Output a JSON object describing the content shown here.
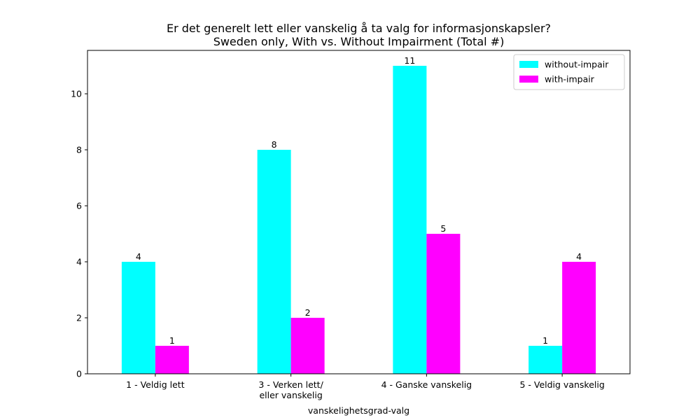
{
  "chart_data": {
    "type": "bar",
    "title": [
      "Er det generelt lett eller vanskelig å ta valg for informasjonskapsler?",
      "Sweden only, With vs. Without Impairment (Total #)"
    ],
    "xlabel": "vanskelighetsgrad-valg",
    "ylabel": "",
    "categories": [
      [
        "1 - Veldig lett"
      ],
      [
        "3 - Verken lett/",
        "eller vanskelig"
      ],
      [
        "4 - Ganske vanskelig"
      ],
      [
        "5 - Veldig vanskelig"
      ]
    ],
    "series": [
      {
        "name": "without-impair",
        "color": "#00ffff",
        "values": [
          4,
          8,
          11,
          1
        ]
      },
      {
        "name": "with-impair",
        "color": "#ff00ff",
        "values": [
          1,
          2,
          5,
          4
        ]
      }
    ],
    "ylim": [
      0,
      11.55
    ],
    "yticks": [
      0,
      2,
      4,
      6,
      8,
      10
    ],
    "grid": false,
    "legend_position": "top-right"
  }
}
